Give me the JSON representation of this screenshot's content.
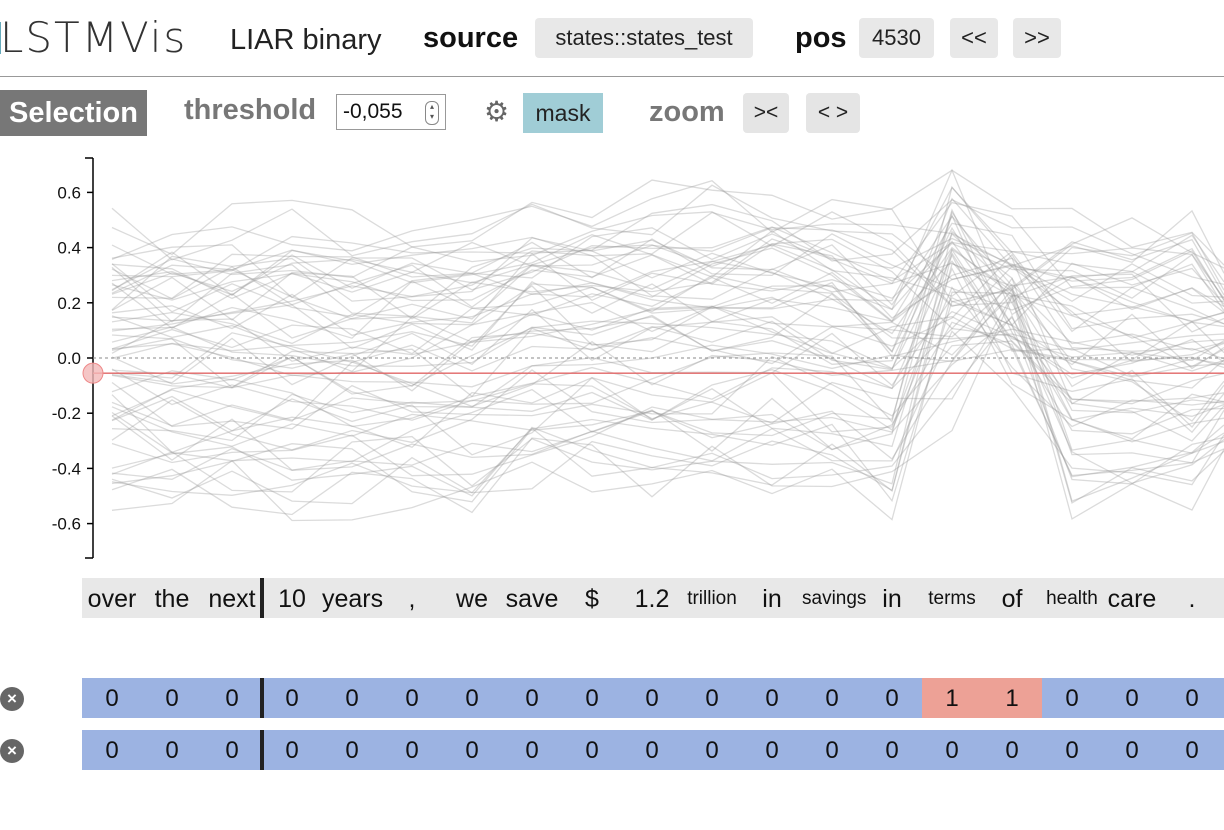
{
  "header": {
    "logo": "LSTMVis",
    "project": "LIAR binary",
    "source_label": "source",
    "source_value": "states::states_test",
    "pos_label": "pos",
    "pos_value": "4530",
    "prev_label": "<<",
    "next_label": ">>"
  },
  "toolbar": {
    "selection_label": "Selection",
    "threshold_label": "threshold",
    "threshold_value": "-0,055",
    "mask_label": "mask",
    "zoom_label": "zoom",
    "zoom_in_label": "><",
    "zoom_out_label": "< >",
    "gear_icon": "gear-icon"
  },
  "chart_data": {
    "type": "line",
    "yticks": [
      "0.6",
      "0.4",
      "0.2",
      "0.0",
      "-0.2",
      "-0.4",
      "-0.6"
    ],
    "ylim": [
      -0.72,
      0.72
    ],
    "threshold": -0.055,
    "line_color": "#999999",
    "threshold_color": "#e06666",
    "series_count": 60
  },
  "words": [
    {
      "t": "over",
      "sm": false
    },
    {
      "t": "the",
      "sm": false
    },
    {
      "t": "next",
      "sm": false
    },
    {
      "t": "10",
      "sm": false
    },
    {
      "t": "years",
      "sm": false
    },
    {
      "t": ",",
      "sm": false
    },
    {
      "t": "we",
      "sm": false
    },
    {
      "t": "save",
      "sm": false
    },
    {
      "t": "$",
      "sm": false
    },
    {
      "t": "1.2",
      "sm": false
    },
    {
      "t": "trillion",
      "sm": true
    },
    {
      "t": "in",
      "sm": false
    },
    {
      "t": "savings",
      "sm": true
    },
    {
      "t": "in",
      "sm": false
    },
    {
      "t": "terms",
      "sm": true
    },
    {
      "t": "of",
      "sm": false
    },
    {
      "t": "health",
      "sm": true
    },
    {
      "t": "care",
      "sm": false
    },
    {
      "t": ".",
      "sm": false
    }
  ],
  "meta_rows": [
    [
      "0",
      "0",
      "0",
      "0",
      "0",
      "0",
      "0",
      "0",
      "0",
      "0",
      "0",
      "0",
      "0",
      "0",
      "1",
      "1",
      "0",
      "0",
      "0"
    ],
    [
      "0",
      "0",
      "0",
      "0",
      "0",
      "0",
      "0",
      "0",
      "0",
      "0",
      "0",
      "0",
      "0",
      "0",
      "0",
      "0",
      "0",
      "0",
      "0"
    ]
  ],
  "colors": {
    "mask": "#a0cdd6",
    "meta_zero": "#9cb3e2",
    "meta_one": "#eda196"
  }
}
